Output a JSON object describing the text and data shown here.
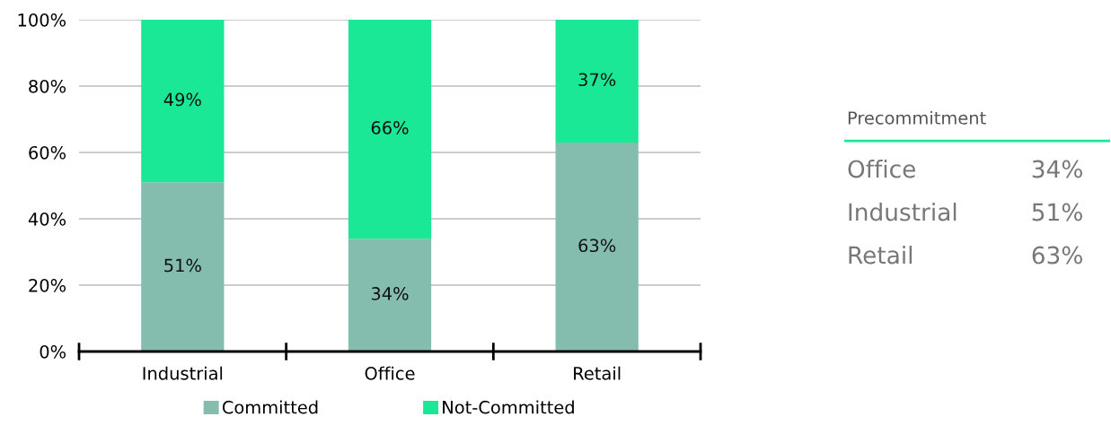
{
  "chart_data": [
    {
      "type": "bar",
      "stacked": true,
      "categories": [
        "Industrial",
        "Office",
        "Retail"
      ],
      "series": [
        {
          "name": "Committed",
          "color": "#84bcae",
          "values": [
            51,
            34,
            63
          ],
          "value_labels": [
            "51%",
            "34%",
            "63%"
          ]
        },
        {
          "name": "Not-Committed",
          "color": "#1ae896",
          "values": [
            49,
            66,
            37
          ],
          "value_labels": [
            "49%",
            "66%",
            "37%"
          ]
        }
      ],
      "ylim": [
        0,
        100
      ],
      "yticks": [
        {
          "value": 0,
          "label": "0%"
        },
        {
          "value": 20,
          "label": "20%"
        },
        {
          "value": 40,
          "label": "40%"
        },
        {
          "value": 60,
          "label": "60%"
        },
        {
          "value": 80,
          "label": "80%"
        },
        {
          "value": 100,
          "label": "100%"
        }
      ],
      "grid": "y",
      "legend": "bottom"
    },
    {
      "type": "other",
      "title": "Precommitment",
      "annotations": [
        "Office",
        "34%",
        "Industrial",
        "51%",
        "Retail",
        "63%"
      ]
    }
  ]
}
